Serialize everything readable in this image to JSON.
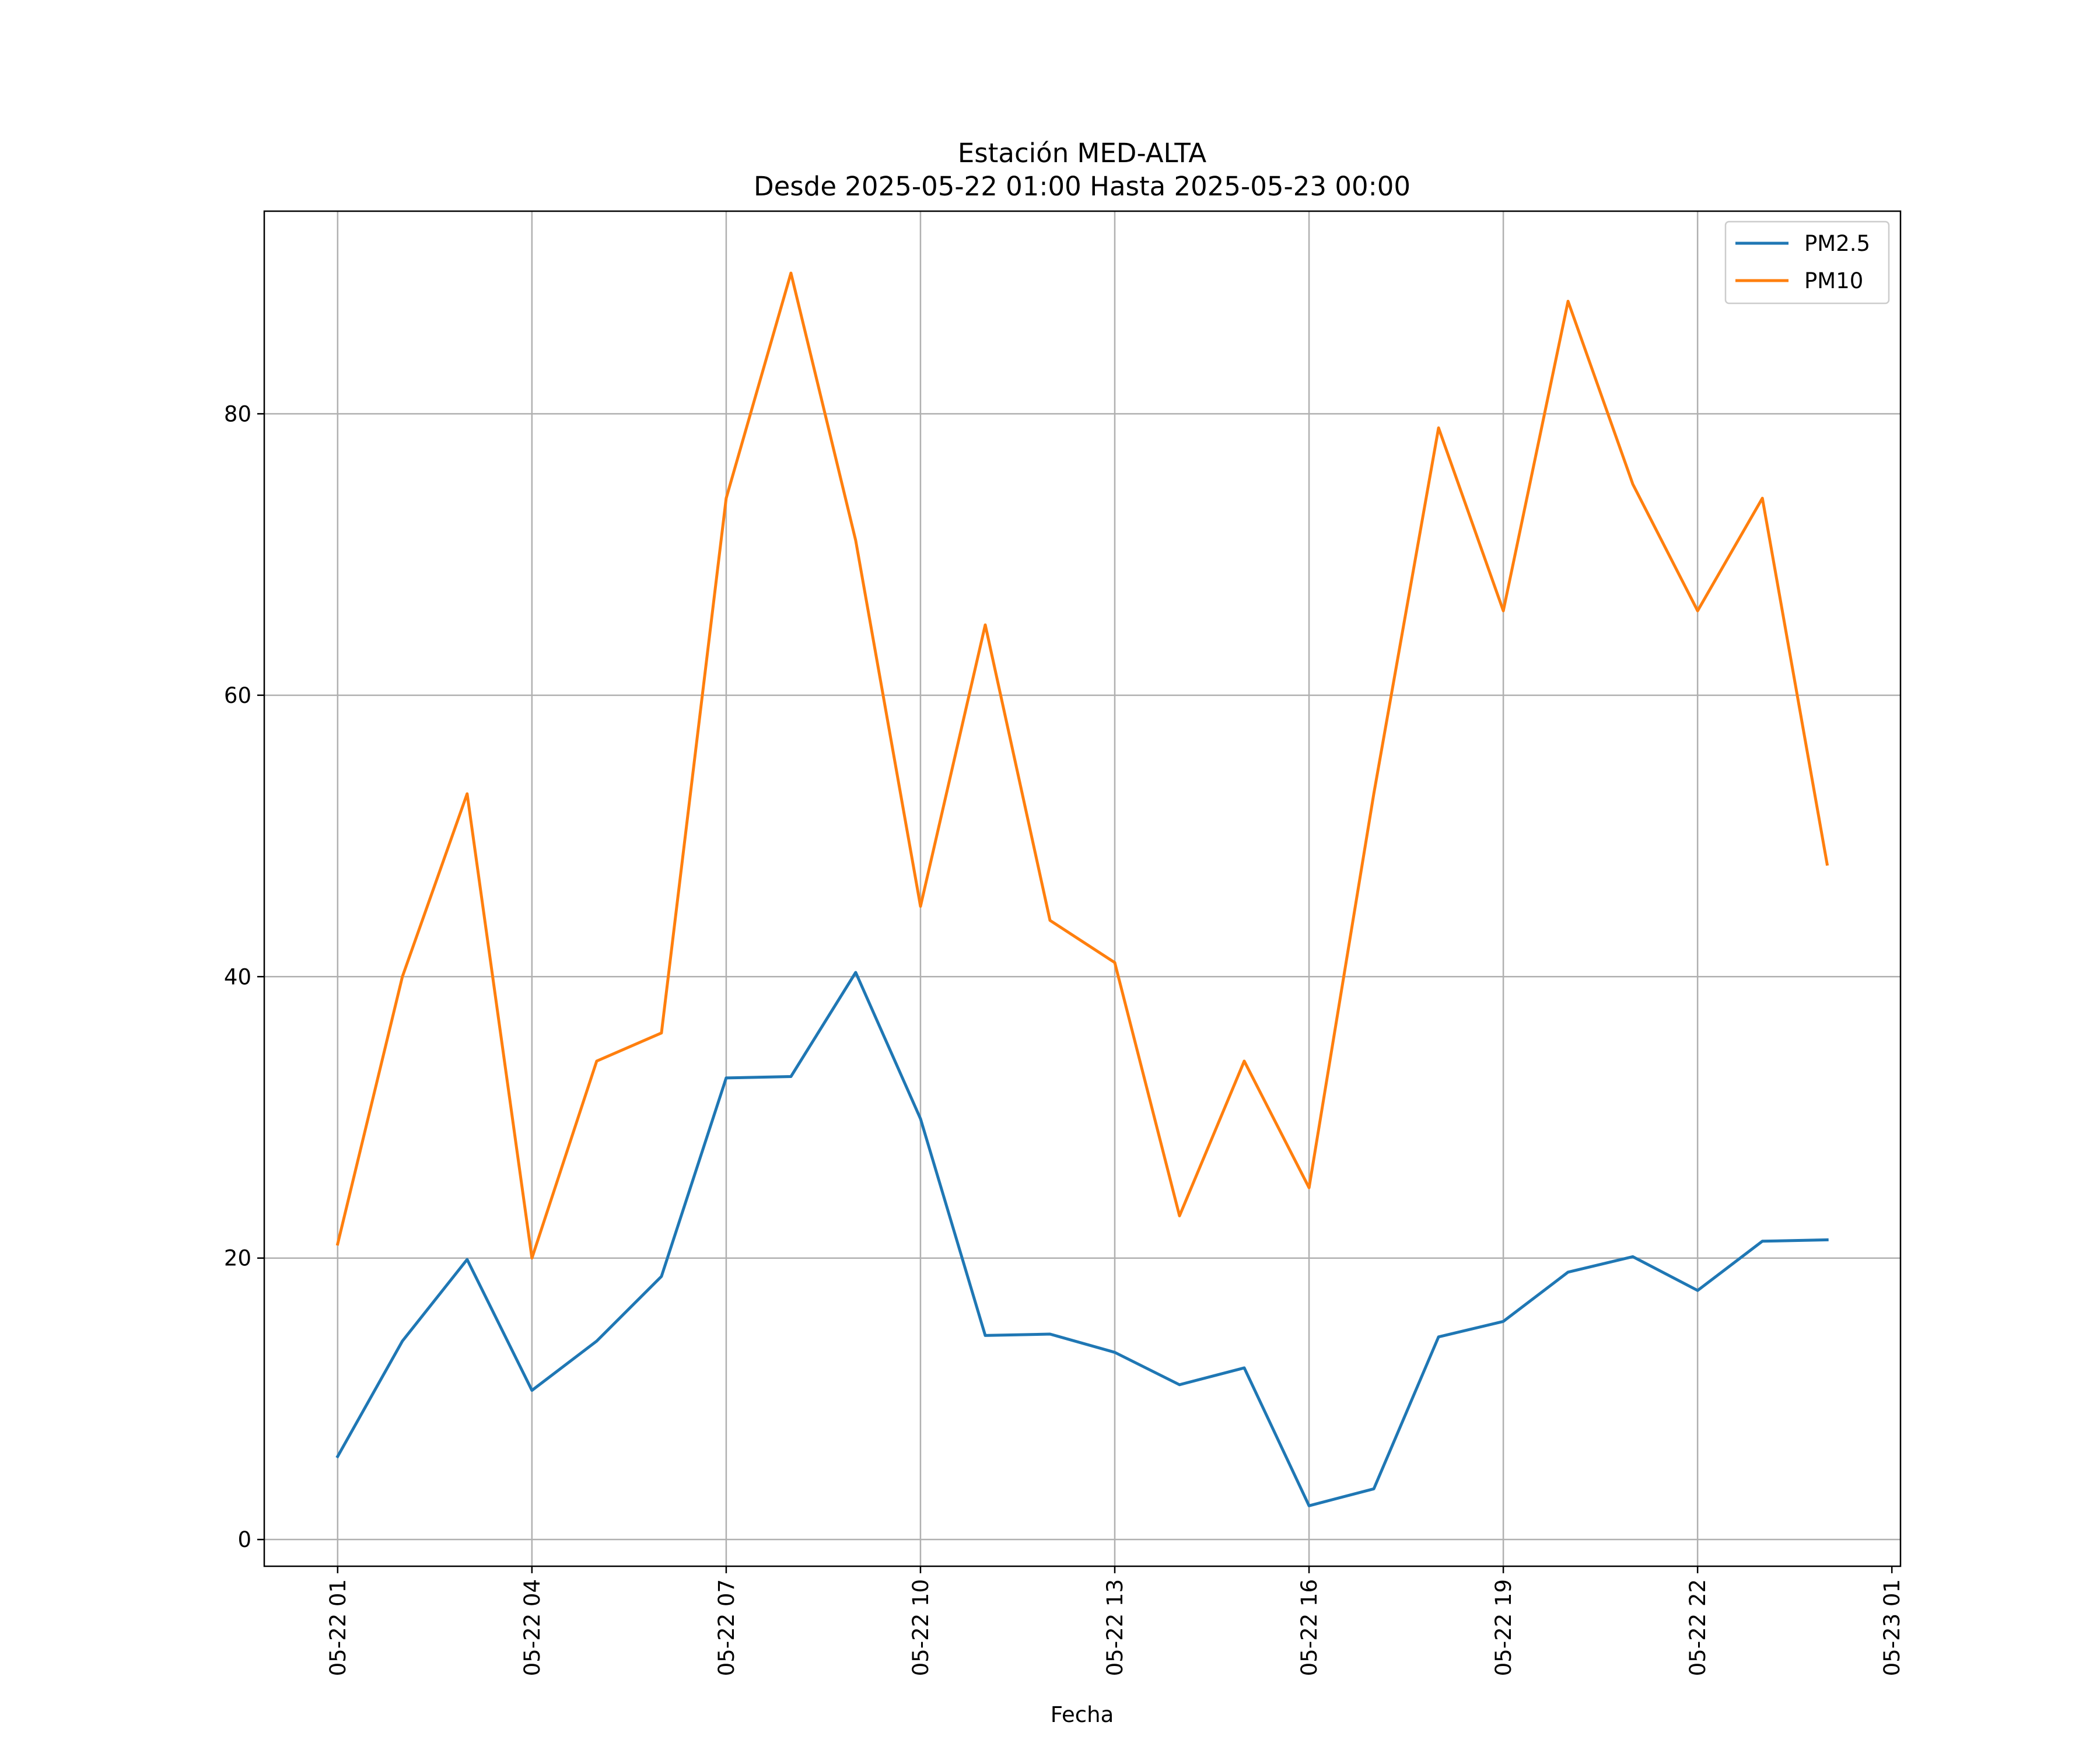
{
  "chart_data": {
    "type": "line",
    "title": "Estación MED-ALTA",
    "subtitle": "Desde 2025-05-22 01:00 Hasta 2025-05-23 00:00",
    "xlabel": "Fecha",
    "ylabel": "",
    "x": [
      "2025-05-22 01:00",
      "2025-05-22 02:00",
      "2025-05-22 03:00",
      "2025-05-22 04:00",
      "2025-05-22 05:00",
      "2025-05-22 06:00",
      "2025-05-22 07:00",
      "2025-05-22 08:00",
      "2025-05-22 09:00",
      "2025-05-22 10:00",
      "2025-05-22 11:00",
      "2025-05-22 12:00",
      "2025-05-22 13:00",
      "2025-05-22 14:00",
      "2025-05-22 15:00",
      "2025-05-22 16:00",
      "2025-05-22 17:00",
      "2025-05-22 18:00",
      "2025-05-22 19:00",
      "2025-05-22 20:00",
      "2025-05-22 21:00",
      "2025-05-22 22:00",
      "2025-05-22 23:00",
      "2025-05-23 00:00"
    ],
    "x_tick_labels": [
      "05-22 01",
      "05-22 04",
      "05-22 07",
      "05-22 10",
      "05-22 13",
      "05-22 16",
      "05-22 19",
      "05-22 22",
      "05-23 01"
    ],
    "x_ticks": [
      "2025-05-22 01:00",
      "2025-05-22 04:00",
      "2025-05-22 07:00",
      "2025-05-22 10:00",
      "2025-05-22 13:00",
      "2025-05-22 16:00",
      "2025-05-22 19:00",
      "2025-05-22 22:00",
      "2025-05-23 01:00"
    ],
    "xlim": [
      "2025-05-21 23:52",
      "2025-05-23 01:08"
    ],
    "y_ticks": [
      0,
      20,
      40,
      60,
      80
    ],
    "y_tick_labels": [
      "0",
      "20",
      "40",
      "60",
      "80"
    ],
    "ylim": [
      -1.9,
      94.4
    ],
    "grid": true,
    "legend_position": "top-right",
    "series": [
      {
        "name": "PM2.5",
        "color": "#1f77b4",
        "values": [
          5.9,
          14.1,
          19.9,
          10.6,
          14.1,
          18.7,
          32.8,
          32.9,
          40.3,
          29.9,
          14.5,
          14.6,
          13.3,
          11.0,
          12.2,
          2.4,
          3.6,
          14.4,
          15.5,
          19.0,
          20.1,
          17.7,
          21.2,
          21.3
        ]
      },
      {
        "name": "PM10",
        "color": "#ff7f0e",
        "values": [
          21,
          40,
          53,
          20,
          34,
          36,
          74,
          90,
          71,
          45,
          65,
          44,
          41,
          23,
          34,
          25,
          53,
          79,
          66,
          88,
          75,
          66,
          74,
          48
        ]
      }
    ]
  }
}
